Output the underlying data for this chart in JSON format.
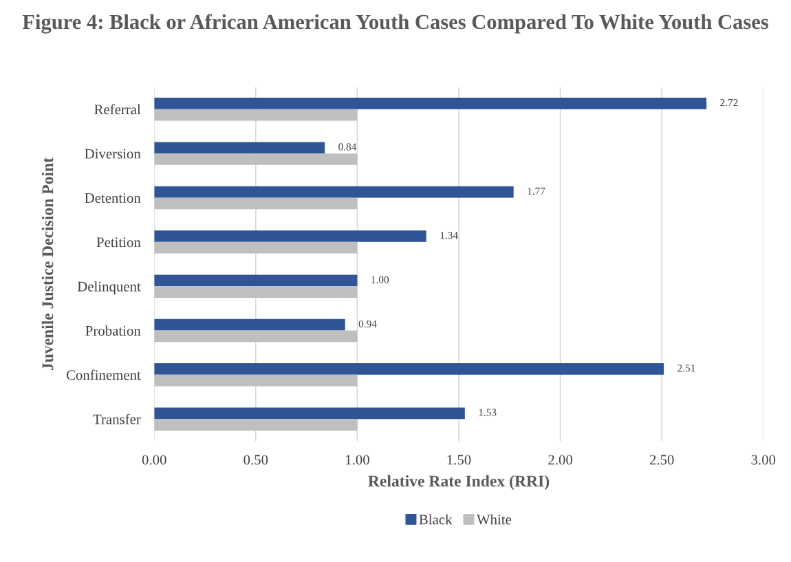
{
  "chart_data": {
    "type": "bar",
    "orientation": "horizontal",
    "title": "Figure 4: Black or African American Youth Cases Compared To White Youth Cases",
    "xlabel": "Relative Rate Index (RRI)",
    "ylabel": "Juvenile Justice Decision Point",
    "categories": [
      "Referral",
      "Diversion",
      "Detention",
      "Petition",
      "Delinquent",
      "Probation",
      "Confinement",
      "Transfer"
    ],
    "series": [
      {
        "name": "Black",
        "color": "#2f5597",
        "values": [
          2.72,
          0.84,
          1.77,
          1.34,
          1.0,
          0.94,
          2.51,
          1.53
        ],
        "value_labels": [
          "2.72",
          "0.84",
          "1.77",
          "1.34",
          "1.00",
          "0.94",
          "2.51",
          "1.53"
        ]
      },
      {
        "name": "White",
        "color": "#bfbfbf",
        "values": [
          1.0,
          1.0,
          1.0,
          1.0,
          1.0,
          1.0,
          1.0,
          1.0
        ]
      }
    ],
    "xlim": [
      0,
      3
    ],
    "xticks": [
      {
        "value": 0,
        "label": "0.00"
      },
      {
        "value": 0.5,
        "label": "0.50"
      },
      {
        "value": 1,
        "label": "1.00"
      },
      {
        "value": 1.5,
        "label": "1.50"
      },
      {
        "value": 2,
        "label": "2.00"
      },
      {
        "value": 2.5,
        "label": "2.50"
      },
      {
        "value": 3,
        "label": "3.00"
      }
    ],
    "grid": "x",
    "legend": "bottom"
  }
}
